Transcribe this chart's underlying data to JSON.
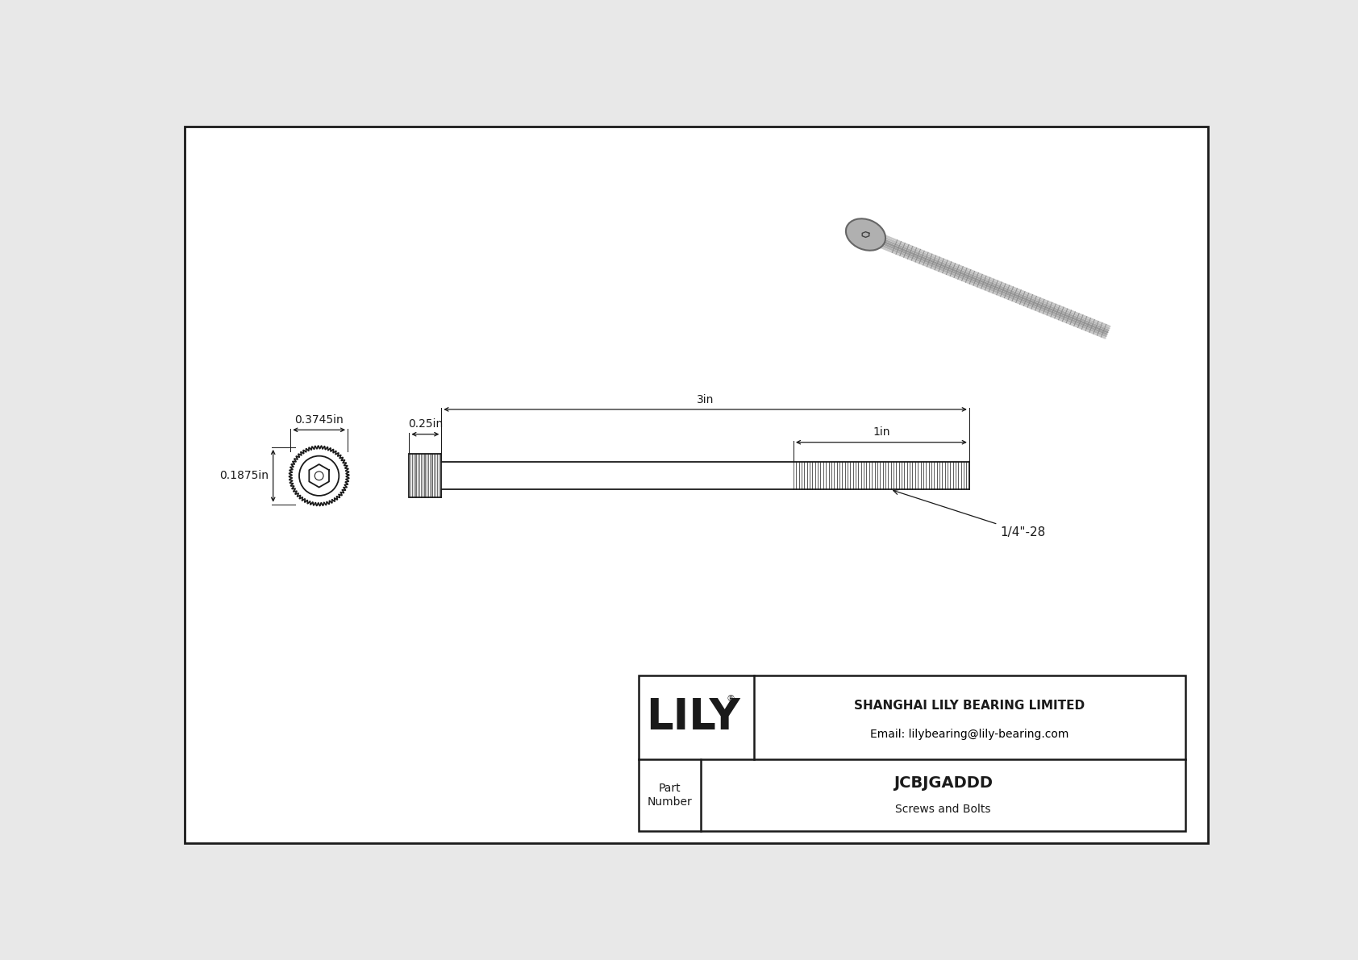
{
  "bg_color": "#e8e8e8",
  "line_color": "#1a1a1a",
  "white": "#ffffff",
  "title_company": "SHANGHAI LILY BEARING LIMITED",
  "title_email": "Email: lilybearing@lily-bearing.com",
  "part_number": "JCBJGADDD",
  "part_category": "Screws and Bolts",
  "part_label": "Part\nNumber",
  "lily_logo": "LILY",
  "dim_head_diameter": "0.3745in",
  "dim_head_length": "0.25in",
  "dim_total_length": "3in",
  "dim_thread_length": "1in",
  "dim_thread_label": "1/4\"-28",
  "dim_depth": "0.1875in",
  "font_size_dim": 10,
  "font_size_table": 10,
  "font_size_logo": 38,
  "font_size_part": 13,
  "font_size_company": 10
}
